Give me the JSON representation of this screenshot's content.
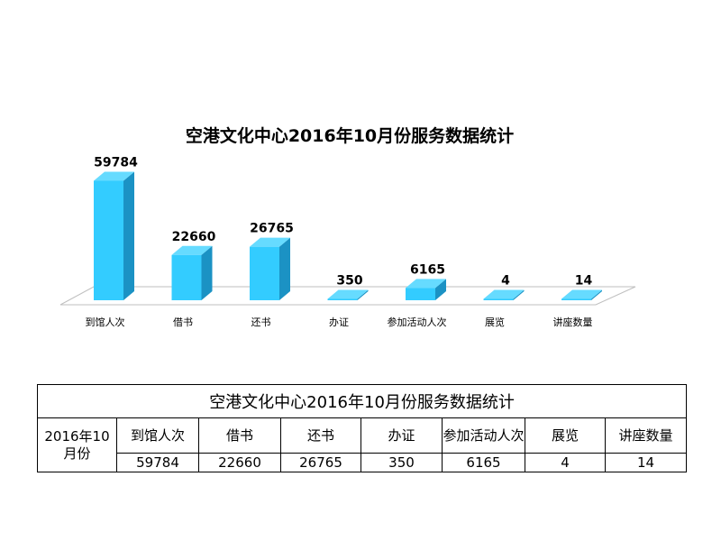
{
  "chart_data": {
    "type": "bar",
    "title": "空港文化中心2016年10月份服务数据统计",
    "categories": [
      "到馆人次",
      "借书",
      "还书",
      "办证",
      "参加活动人次",
      "展览",
      "讲座数量"
    ],
    "values": [
      59784,
      22660,
      26765,
      350,
      6165,
      4,
      14
    ],
    "ylim": [
      0,
      60000
    ],
    "grid": false,
    "legend": "none",
    "style": "3d-column",
    "colors": {
      "bar_front": "#33ccff",
      "bar_side": "#1b92c4",
      "bar_top": "#66dbff",
      "floor": "#ffffff",
      "floor_stroke": "#bfbfbf"
    }
  },
  "table": {
    "title": "空港文化中心2016年10月份服务数据统计",
    "row_header": "2016年10月份",
    "columns": [
      "到馆人次",
      "借书",
      "还书",
      "办证",
      "参加活动人次",
      "展览",
      "讲座数量"
    ],
    "values": [
      "59784",
      "22660",
      "26765",
      "350",
      "6165",
      "4",
      "14"
    ]
  }
}
